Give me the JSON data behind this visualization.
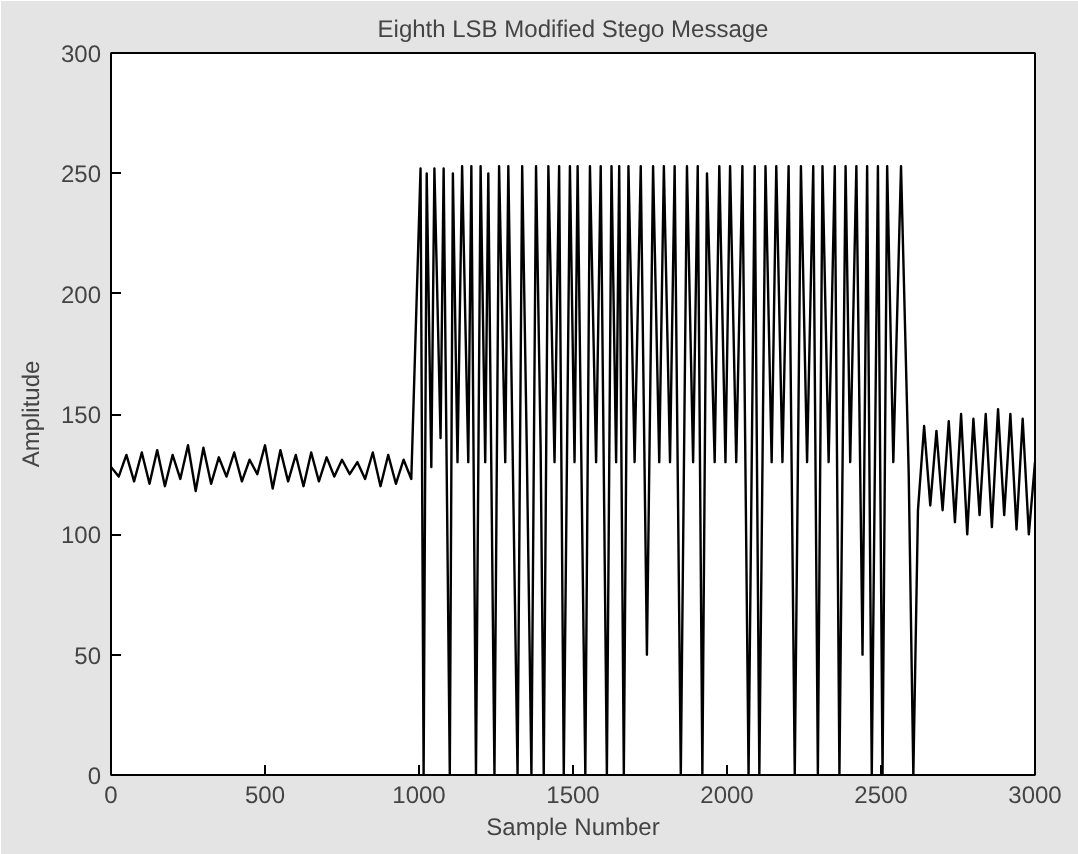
{
  "chart_data": {
    "type": "line",
    "title": "Eighth LSB Modified Stego Message",
    "xlabel": "Sample Number",
    "ylabel": "Amplitude",
    "xlim": [
      0,
      3000
    ],
    "xticks": [
      0,
      500,
      1000,
      1500,
      2000,
      2500,
      3000
    ],
    "ylim": [
      0,
      300
    ],
    "yticks": [
      0,
      50,
      100,
      150,
      200,
      250,
      300
    ],
    "grid": false,
    "series": [
      {
        "color": "#000000",
        "x": [
          0,
          25,
          50,
          75,
          100,
          125,
          150,
          175,
          200,
          225,
          250,
          275,
          300,
          325,
          350,
          375,
          400,
          425,
          450,
          475,
          500,
          525,
          550,
          575,
          600,
          625,
          650,
          675,
          700,
          725,
          750,
          775,
          800,
          825,
          850,
          875,
          900,
          925,
          950,
          975,
          1005,
          1015,
          1025,
          1040,
          1050,
          1070,
          1080,
          1100,
          1110,
          1125,
          1140,
          1160,
          1170,
          1185,
          1200,
          1215,
          1225,
          1245,
          1260,
          1280,
          1290,
          1320,
          1335,
          1350,
          1365,
          1380,
          1395,
          1405,
          1420,
          1440,
          1455,
          1470,
          1490,
          1505,
          1515,
          1540,
          1555,
          1575,
          1590,
          1610,
          1625,
          1640,
          1650,
          1665,
          1680,
          1700,
          1720,
          1740,
          1760,
          1780,
          1795,
          1815,
          1830,
          1850,
          1870,
          1890,
          1905,
          1920,
          1935,
          1960,
          1975,
          1995,
          2010,
          2030,
          2050,
          2070,
          2090,
          2105,
          2125,
          2145,
          2160,
          2180,
          2200,
          2220,
          2240,
          2260,
          2280,
          2295,
          2310,
          2330,
          2350,
          2365,
          2385,
          2400,
          2420,
          2440,
          2455,
          2470,
          2490,
          2505,
          2520,
          2540,
          2565,
          2590,
          2605,
          2620,
          2640,
          2660,
          2680,
          2700,
          2720,
          2740,
          2760,
          2780,
          2800,
          2820,
          2840,
          2860,
          2880,
          2900,
          2920,
          2940,
          2960,
          2980,
          3000
        ],
        "values": [
          128,
          124,
          133,
          122,
          134,
          121,
          135,
          120,
          133,
          123,
          137,
          118,
          136,
          121,
          132,
          124,
          134,
          122,
          131,
          125,
          137,
          119,
          135,
          122,
          133,
          120,
          134,
          122,
          132,
          124,
          131,
          125,
          130,
          123,
          134,
          120,
          133,
          121,
          131,
          123,
          252,
          0,
          250,
          128,
          252,
          140,
          252,
          0,
          250,
          130,
          253,
          130,
          253,
          0,
          253,
          130,
          250,
          0,
          253,
          130,
          253,
          0,
          253,
          135,
          0,
          253,
          135,
          0,
          253,
          130,
          253,
          0,
          253,
          130,
          253,
          0,
          253,
          130,
          253,
          0,
          253,
          130,
          253,
          0,
          253,
          130,
          253,
          50,
          253,
          130,
          253,
          130,
          253,
          0,
          253,
          130,
          253,
          0,
          250,
          130,
          253,
          130,
          253,
          130,
          253,
          0,
          253,
          0,
          253,
          130,
          253,
          130,
          253,
          0,
          253,
          130,
          253,
          0,
          253,
          130,
          253,
          0,
          253,
          130,
          253,
          50,
          253,
          0,
          253,
          0,
          253,
          130,
          253,
          125,
          0,
          110,
          145,
          112,
          143,
          110,
          147,
          105,
          150,
          100,
          148,
          108,
          150,
          103,
          152,
          108,
          150,
          102,
          148,
          100,
          130
        ]
      }
    ]
  }
}
